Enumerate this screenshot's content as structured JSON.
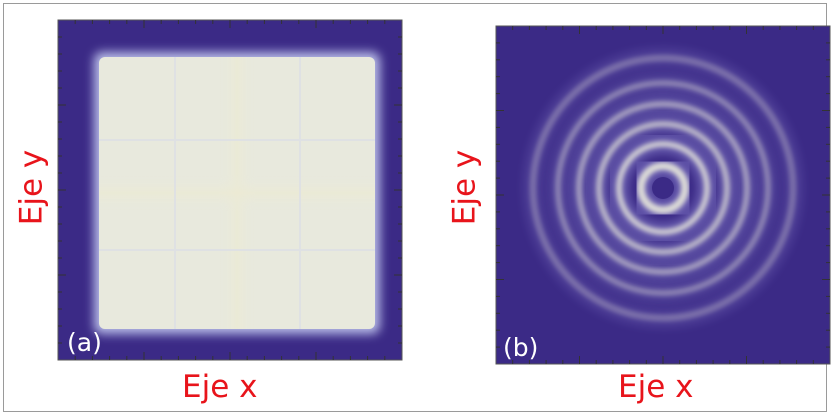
{
  "figure": {
    "panels": [
      {
        "id": "a",
        "tag": "(a)",
        "xlabel": "Eje x",
        "ylabel": "Eje y",
        "pattern": "square-aperture",
        "colors": {
          "background": "#3b2a86",
          "fill": "#e9e9dc",
          "glow": "#c5c7ef"
        }
      },
      {
        "id": "b",
        "tag": "(b)",
        "xlabel": "Eje x",
        "ylabel": "Eje y",
        "pattern": "concentric-rings",
        "colors": {
          "background": "#3b2a86",
          "ring": "#e9e9dc",
          "glow": "#8a82cf"
        }
      }
    ],
    "label_color": "#e8141b"
  }
}
